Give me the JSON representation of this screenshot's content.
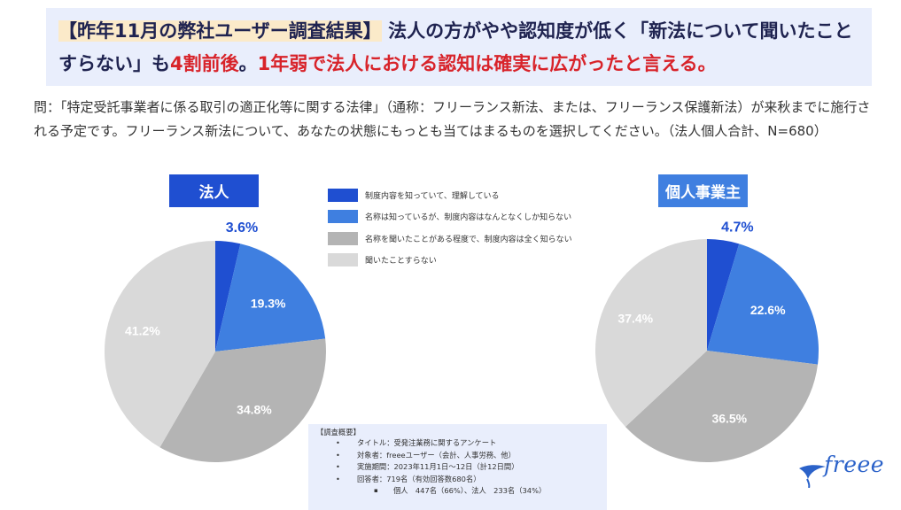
{
  "headline": {
    "bracket": "【昨年11月の弊社ユーザー調査結果】",
    "part1": "法人の方がやや認知度が低く「新法について聞いたことすらない」も",
    "red1": "4割前後",
    "part2": "。",
    "red2": "1年弱で法人における認知は確実に広がったと言える。"
  },
  "question": "問：「特定受託事業者に係る取引の適正化等に関する法律」（通称：フリーランス新法、または、フリーランス保護新法）が来秋までに施行される予定です。フリーランス新法について、あなたの状態にもっとも当てはまるものを選択してください。（法人個人合計、N=680）",
  "legend": [
    {
      "label": "制度内容を知っていて、理解している",
      "color": "#1f4fd1"
    },
    {
      "label": "名称は知っているが、制度内容はなんとなくしか知らない",
      "color": "#3f7fe0"
    },
    {
      "label": "名称を聞いたことがある程度で、制度内容は全く知らない",
      "color": "#b4b4b4"
    },
    {
      "label": "聞いたことすらない",
      "color": "#d9d9d9"
    }
  ],
  "chart_data": [
    {
      "type": "pie",
      "title": "法人",
      "categories": [
        "制度内容を知っていて、理解している",
        "名称は知っているが、制度内容はなんとなくしか知らない",
        "名称を聞いたことがある程度で、制度内容は全く知らない",
        "聞いたことすらない"
      ],
      "values": [
        3.6,
        19.3,
        34.8,
        41.2
      ],
      "labels": [
        "3.6%",
        "19.3%",
        "34.8%",
        "41.2%"
      ],
      "colors": [
        "#1f4fd1",
        "#3f7fe0",
        "#b4b4b4",
        "#d9d9d9"
      ],
      "label_colors": [
        "#1f4fd1",
        "#ffffff",
        "#ffffff",
        "#ffffff"
      ]
    },
    {
      "type": "pie",
      "title": "個人事業主",
      "categories": [
        "制度内容を知っていて、理解している",
        "名称は知っているが、制度内容はなんとなくしか知らない",
        "名称を聞いたことがある程度で、制度内容は全く知らない",
        "聞いたことすらない"
      ],
      "values": [
        4.7,
        22.6,
        36.5,
        37.4
      ],
      "labels": [
        "4.7%",
        "22.6%",
        "36.5%",
        "37.4%"
      ],
      "colors": [
        "#1f4fd1",
        "#3f7fe0",
        "#b4b4b4",
        "#d9d9d9"
      ],
      "label_colors": [
        "#1f4fd1",
        "#ffffff",
        "#ffffff",
        "#ffffff"
      ]
    }
  ],
  "survey": {
    "title": "【調査概要】",
    "items": [
      "タイトル：受発注業務に関するアンケート",
      "対象者：freeeユーザー（会計、人事労務、他）",
      "実施期間：2023年11月1日〜12日（計12日間）",
      "回答者：719名（有効回答数680名）"
    ],
    "sub": "個人　447名（66%）、法人　233名（34%）"
  },
  "logo": {
    "text": "freee",
    "icon": "freee-bird-icon",
    "color": "#2b62c9"
  }
}
